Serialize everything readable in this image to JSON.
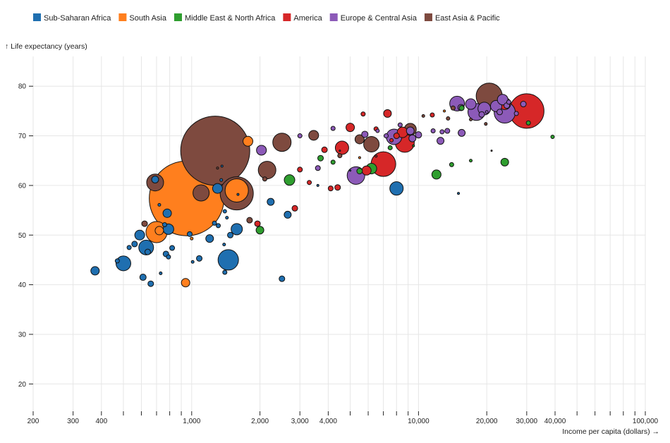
{
  "chart_data": {
    "type": "scatter",
    "xlabel": "Income per capita (dollars) →",
    "ylabel": "↑ Life expectancy (years)",
    "x_scale": "log",
    "xlim": [
      200,
      100000
    ],
    "ylim": [
      14.5,
      86
    ],
    "grid": true,
    "legend_position": "top-left",
    "x_ticks": [
      200,
      300,
      400,
      500,
      600,
      700,
      800,
      900,
      1000,
      2000,
      3000,
      4000,
      5000,
      6000,
      7000,
      8000,
      9000,
      10000,
      20000,
      30000,
      40000,
      50000,
      60000,
      70000,
      80000,
      90000,
      100000
    ],
    "x_tick_labels": [
      {
        "value": 200,
        "label": "200"
      },
      {
        "value": 300,
        "label": "300"
      },
      {
        "value": 400,
        "label": "400"
      },
      {
        "value": 1000,
        "label": "1,000"
      },
      {
        "value": 2000,
        "label": "2,000"
      },
      {
        "value": 3000,
        "label": "3,000"
      },
      {
        "value": 4000,
        "label": "4,000"
      },
      {
        "value": 10000,
        "label": "10,000"
      },
      {
        "value": 20000,
        "label": "20,000"
      },
      {
        "value": 30000,
        "label": "30,000"
      },
      {
        "value": 40000,
        "label": "40,000"
      },
      {
        "value": 100000,
        "label": "100,000"
      }
    ],
    "y_ticks": [
      {
        "value": 20,
        "label": "20"
      },
      {
        "value": 30,
        "label": "30"
      },
      {
        "value": 40,
        "label": "40"
      },
      {
        "value": 50,
        "label": "50"
      },
      {
        "value": 60,
        "label": "60"
      },
      {
        "value": 70,
        "label": "70"
      },
      {
        "value": 80,
        "label": "80"
      }
    ],
    "size_unit_note": "r = relative bubble size (population)",
    "series": [
      {
        "name": "Sub-Saharan Africa",
        "color": "#1f6fb0",
        "points": [
          [
            375,
            42.8,
            6
          ],
          [
            470,
            44.8,
            3
          ],
          [
            500,
            44.3,
            10.5
          ],
          [
            530,
            47.5,
            3
          ],
          [
            560,
            48.2,
            4
          ],
          [
            590,
            50,
            7
          ],
          [
            610,
            41.5,
            4.5
          ],
          [
            630,
            47.5,
            10.5
          ],
          [
            640,
            46.6,
            4
          ],
          [
            660,
            40.2,
            4
          ],
          [
            690,
            61.2,
            5
          ],
          [
            720,
            56.1,
            2
          ],
          [
            730,
            42.3,
            2
          ],
          [
            760,
            52.1,
            3
          ],
          [
            780,
            54.4,
            6
          ],
          [
            790,
            51.2,
            7.5
          ],
          [
            770,
            46.2,
            4
          ],
          [
            790,
            45.6,
            3
          ],
          [
            820,
            47.4,
            3.5
          ],
          [
            980,
            50.2,
            3.5
          ],
          [
            1010,
            44.6,
            2
          ],
          [
            1080,
            45.3,
            4
          ],
          [
            1200,
            49.3,
            5.5
          ],
          [
            1260,
            52.4,
            3
          ],
          [
            1300,
            59.4,
            7
          ],
          [
            1350,
            61.1,
            2
          ],
          [
            1310,
            51.9,
            3
          ],
          [
            1360,
            63.9,
            1.5
          ],
          [
            1390,
            48.1,
            2
          ],
          [
            1430,
            53.5,
            2
          ],
          [
            1400,
            54.8,
            2.5
          ],
          [
            1450,
            45,
            14.5
          ],
          [
            1400,
            42.5,
            3
          ],
          [
            1480,
            50,
            4
          ],
          [
            1580,
            51.2,
            8
          ],
          [
            1600,
            58.2,
            1.5
          ],
          [
            2230,
            56.7,
            5
          ],
          [
            2500,
            41.2,
            4
          ],
          [
            2650,
            54.1,
            5
          ],
          [
            3600,
            60,
            1.5
          ],
          [
            4500,
            67,
            1
          ],
          [
            5000,
            63,
            1
          ],
          [
            8000,
            59.4,
            9.5
          ],
          [
            15000,
            58.4,
            1.5
          ]
        ]
      },
      {
        "name": "South Asia",
        "color": "#ff7f1e",
        "points": [
          [
            950,
            57.4,
            53
          ],
          [
            700,
            50.6,
            15
          ],
          [
            720,
            50.9,
            6
          ],
          [
            940,
            40.4,
            6
          ],
          [
            1000,
            49.3,
            2
          ],
          [
            1580,
            59,
            16.5
          ],
          [
            1770,
            68.9,
            7
          ],
          [
            5500,
            65.6,
            1.5
          ],
          [
            13000,
            75,
            1.5
          ]
        ]
      },
      {
        "name": "Middle East & North Africa",
        "color": "#2f9e2f",
        "points": [
          [
            2000,
            51,
            5.5
          ],
          [
            2700,
            61.1,
            7.5
          ],
          [
            3700,
            65.5,
            4
          ],
          [
            4200,
            64.7,
            3
          ],
          [
            5500,
            62.9,
            4
          ],
          [
            6200,
            63.4,
            7.5
          ],
          [
            7500,
            67.6,
            3
          ],
          [
            9500,
            68,
            1.5
          ],
          [
            12000,
            62.2,
            6.5
          ],
          [
            14000,
            64.2,
            3
          ],
          [
            15500,
            75.6,
            3.5
          ],
          [
            17000,
            65,
            2
          ],
          [
            24000,
            64.7,
            5.5
          ],
          [
            30500,
            72.6,
            3
          ],
          [
            39000,
            69.8,
            2.5
          ]
        ]
      },
      {
        "name": "America",
        "color": "#d62728",
        "points": [
          [
            1950,
            52.3,
            4
          ],
          [
            2850,
            55.4,
            4
          ],
          [
            3000,
            63.2,
            3.5
          ],
          [
            3300,
            60.6,
            3
          ],
          [
            3850,
            67.2,
            4
          ],
          [
            4100,
            59.4,
            3.5
          ],
          [
            4400,
            59.6,
            4
          ],
          [
            4600,
            67.6,
            9.5
          ],
          [
            5000,
            71.7,
            6
          ],
          [
            5700,
            74.4,
            3
          ],
          [
            5900,
            63,
            6.5
          ],
          [
            6500,
            71.4,
            3
          ],
          [
            6500,
            65.9,
            1.5
          ],
          [
            7000,
            64.3,
            17.5
          ],
          [
            7300,
            74.5,
            5.5
          ],
          [
            7600,
            69.1,
            2.5
          ],
          [
            8000,
            70,
            4
          ],
          [
            8500,
            70.7,
            7.5
          ],
          [
            8700,
            68.6,
            13.5
          ],
          [
            11500,
            74.2,
            3
          ],
          [
            24000,
            76.5,
            8.5
          ],
          [
            30000,
            75,
            24.5
          ]
        ]
      },
      {
        "name": "Europe & Central Asia",
        "color": "#8c5ab8",
        "points": [
          [
            2030,
            67.1,
            7
          ],
          [
            3000,
            70,
            3
          ],
          [
            3600,
            63.5,
            3.5
          ],
          [
            4200,
            71.5,
            3
          ],
          [
            5300,
            62,
            12.5
          ],
          [
            5800,
            70.3,
            4.5
          ],
          [
            6600,
            71,
            2.5
          ],
          [
            7200,
            70,
            3
          ],
          [
            7800,
            69.8,
            11
          ],
          [
            8300,
            72.2,
            3
          ],
          [
            9200,
            71,
            5.5
          ],
          [
            9400,
            69.5,
            5
          ],
          [
            10000,
            70.2,
            4.5
          ],
          [
            11600,
            71,
            3
          ],
          [
            12500,
            69,
            5
          ],
          [
            12700,
            70.8,
            3
          ],
          [
            13400,
            71,
            3.5
          ],
          [
            14800,
            76.5,
            10.5
          ],
          [
            15400,
            75.7,
            4.5
          ],
          [
            15500,
            70.6,
            5
          ],
          [
            17000,
            76.4,
            7.5
          ],
          [
            18000,
            74.8,
            12
          ],
          [
            19000,
            74.3,
            4
          ],
          [
            19500,
            75.5,
            9
          ],
          [
            20000,
            74.8,
            2
          ],
          [
            22000,
            76,
            8
          ],
          [
            22800,
            74.8,
            4
          ],
          [
            23500,
            77.3,
            7.5
          ],
          [
            24000,
            74.7,
            15
          ],
          [
            24500,
            76.1,
            4
          ],
          [
            25000,
            76.8,
            3
          ],
          [
            27000,
            74.5,
            3
          ],
          [
            29000,
            76.4,
            4
          ]
        ]
      },
      {
        "name": "East Asia & Pacific",
        "color": "#7e4a3f",
        "points": [
          [
            1270,
            67,
            49
          ],
          [
            1300,
            63.5,
            1.5
          ],
          [
            620,
            52.3,
            4
          ],
          [
            690,
            60.6,
            12
          ],
          [
            1100,
            58.5,
            11.5
          ],
          [
            1580,
            58.4,
            23.5
          ],
          [
            1800,
            53,
            4
          ],
          [
            2100,
            61.3,
            3
          ],
          [
            2150,
            63.1,
            12.5
          ],
          [
            2500,
            68.7,
            13
          ],
          [
            3450,
            70.1,
            7
          ],
          [
            4500,
            66,
            3
          ],
          [
            5500,
            69.3,
            6.5
          ],
          [
            6200,
            68.3,
            11
          ],
          [
            9200,
            71.3,
            8.5
          ],
          [
            10500,
            74,
            2
          ],
          [
            13500,
            73.5,
            2.5
          ],
          [
            14200,
            75.6,
            3
          ],
          [
            17000,
            73.3,
            2
          ],
          [
            19800,
            72.4,
            2
          ],
          [
            20500,
            78,
            18.5
          ],
          [
            21000,
            67,
            1
          ]
        ]
      }
    ]
  }
}
